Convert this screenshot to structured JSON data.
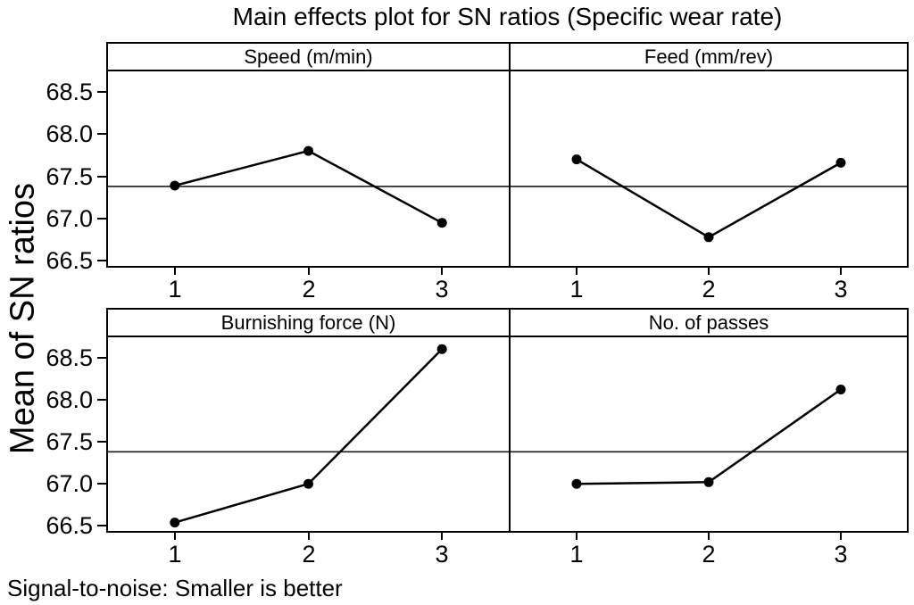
{
  "chart_data": {
    "type": "line",
    "chart_kind": "main-effects-trellis-2x2",
    "title": "Main effects plot for SN ratios (Specific wear rate)",
    "ylabel": "Mean of SN ratios",
    "caption": "Signal-to-noise: Smaller is better",
    "x_categories": [
      "1",
      "2",
      "3"
    ],
    "yticks": [
      66.5,
      67.0,
      67.5,
      68.0,
      68.5
    ],
    "ytick_labels": [
      "66.5",
      "67.0",
      "67.5",
      "68.0",
      "68.5"
    ],
    "ylim": [
      66.44,
      68.74
    ],
    "reference_line_mean": 67.38,
    "grid": false,
    "legend": "none",
    "marker": "filled-circle",
    "colors": {
      "line": "#000000",
      "marker": "#000000",
      "reference_line": "#1a1a1a",
      "background": "#ffffff",
      "text": "#000000"
    },
    "panels": [
      {
        "label": "Speed (m/min)",
        "x": [
          1,
          2,
          3
        ],
        "values": [
          67.39,
          67.8,
          66.95
        ]
      },
      {
        "label": "Feed (mm/rev)",
        "x": [
          1,
          2,
          3
        ],
        "values": [
          67.7,
          66.78,
          67.66
        ]
      },
      {
        "label": "Burnishing force (N)",
        "x": [
          1,
          2,
          3
        ],
        "values": [
          66.54,
          67.0,
          68.6
        ]
      },
      {
        "label": "No. of passes",
        "x": [
          1,
          2,
          3
        ],
        "values": [
          67.0,
          67.02,
          68.12
        ]
      }
    ]
  }
}
